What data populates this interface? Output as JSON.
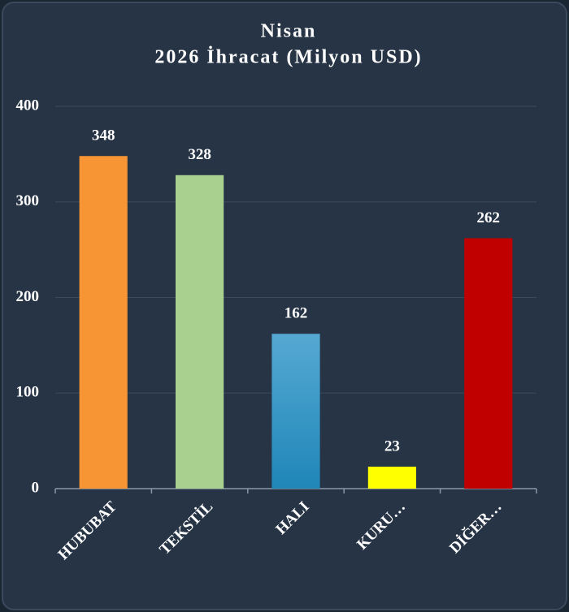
{
  "chart_data": {
    "type": "bar",
    "title": [
      "Nisan",
      "2026 İhracat (Milyon USD)"
    ],
    "categories": [
      "HUBUBAT",
      "TEKSTİL",
      "HALI",
      "KURU…",
      "DİĞER…"
    ],
    "values": [
      348,
      328,
      162,
      23,
      262
    ],
    "colors": [
      "#f79433",
      "#a9d08e",
      "#2e93c0",
      "#ffff00",
      "#c00000"
    ],
    "ylim": [
      0,
      400
    ],
    "yticks": [
      0,
      100,
      200,
      300,
      400
    ],
    "grid": true
  }
}
